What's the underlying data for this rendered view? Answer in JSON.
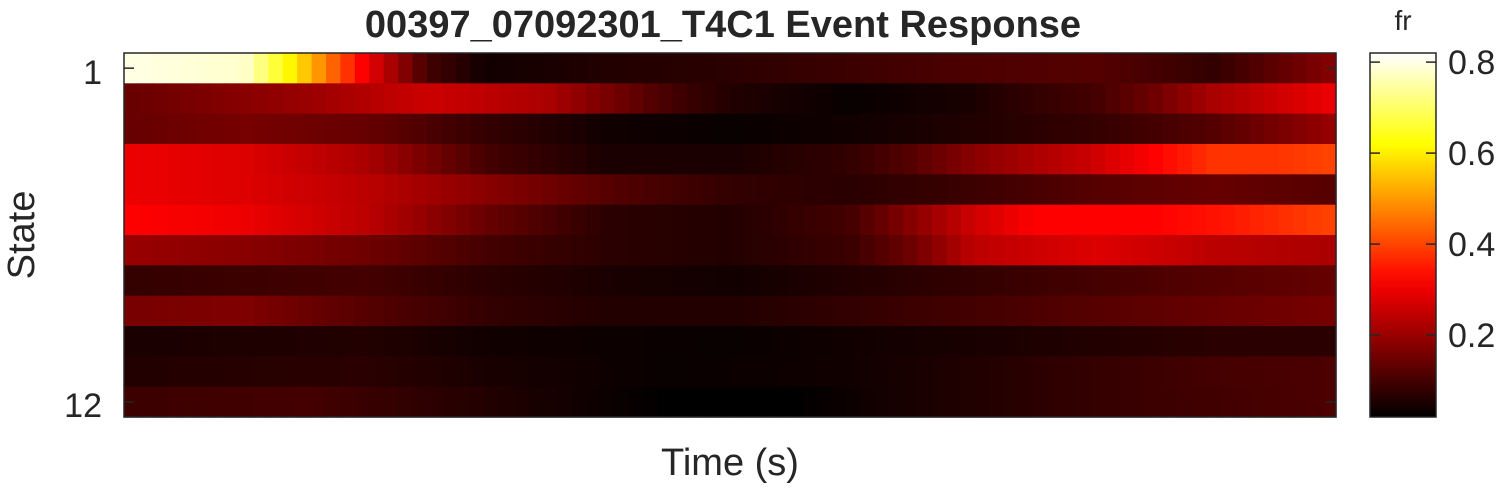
{
  "chart_data": {
    "type": "heatmap",
    "title": "00397_07092301_T4C1 Event Response",
    "xlabel": "Time (s)",
    "ylabel": "State",
    "y_tick_labels": [
      "1",
      "12"
    ],
    "rows": 12,
    "colorbar": {
      "label": "fr",
      "range": [
        0.02,
        0.82
      ],
      "ticks": [
        0.2,
        0.4,
        0.6,
        0.8
      ],
      "tick_labels": [
        "0.2",
        "0.4",
        "0.6",
        "0.8"
      ],
      "colormap": "hot"
    },
    "row_profiles": [
      [
        [
          0,
          0.8
        ],
        [
          0.1,
          0.78
        ],
        [
          0.15,
          0.55
        ],
        [
          0.2,
          0.3
        ],
        [
          0.25,
          0.1
        ],
        [
          0.3,
          0.04
        ],
        [
          0.4,
          0.06
        ],
        [
          0.5,
          0.07
        ],
        [
          0.6,
          0.09
        ],
        [
          0.7,
          0.11
        ],
        [
          0.8,
          0.12
        ],
        [
          0.85,
          0.1
        ],
        [
          0.9,
          0.08
        ],
        [
          1.0,
          0.18
        ]
      ],
      [
        [
          0,
          0.14
        ],
        [
          0.15,
          0.2
        ],
        [
          0.25,
          0.26
        ],
        [
          0.35,
          0.22
        ],
        [
          0.45,
          0.1
        ],
        [
          0.5,
          0.06
        ],
        [
          0.6,
          0.03
        ],
        [
          0.7,
          0.05
        ],
        [
          0.75,
          0.08
        ],
        [
          0.8,
          0.1
        ],
        [
          0.85,
          0.15
        ],
        [
          0.9,
          0.22
        ],
        [
          0.95,
          0.26
        ],
        [
          1.0,
          0.3
        ]
      ],
      [
        [
          0,
          0.14
        ],
        [
          0.1,
          0.16
        ],
        [
          0.2,
          0.14
        ],
        [
          0.3,
          0.08
        ],
        [
          0.4,
          0.04
        ],
        [
          0.5,
          0.03
        ],
        [
          0.6,
          0.04
        ],
        [
          0.7,
          0.06
        ],
        [
          0.8,
          0.08
        ],
        [
          0.9,
          0.12
        ],
        [
          1.0,
          0.2
        ]
      ],
      [
        [
          0,
          0.3
        ],
        [
          0.1,
          0.28
        ],
        [
          0.2,
          0.22
        ],
        [
          0.3,
          0.1
        ],
        [
          0.4,
          0.05
        ],
        [
          0.5,
          0.05
        ],
        [
          0.6,
          0.08
        ],
        [
          0.65,
          0.12
        ],
        [
          0.7,
          0.18
        ],
        [
          0.8,
          0.26
        ],
        [
          0.85,
          0.32
        ],
        [
          0.9,
          0.38
        ],
        [
          0.95,
          0.38
        ],
        [
          1.0,
          0.4
        ]
      ],
      [
        [
          0,
          0.3
        ],
        [
          0.1,
          0.28
        ],
        [
          0.2,
          0.24
        ],
        [
          0.3,
          0.18
        ],
        [
          0.4,
          0.12
        ],
        [
          0.5,
          0.08
        ],
        [
          0.6,
          0.07
        ],
        [
          0.7,
          0.09
        ],
        [
          0.8,
          0.12
        ],
        [
          0.9,
          0.14
        ],
        [
          1.0,
          0.12
        ]
      ],
      [
        [
          0,
          0.32
        ],
        [
          0.1,
          0.3
        ],
        [
          0.2,
          0.24
        ],
        [
          0.3,
          0.14
        ],
        [
          0.4,
          0.07
        ],
        [
          0.5,
          0.06
        ],
        [
          0.6,
          0.1
        ],
        [
          0.65,
          0.18
        ],
        [
          0.7,
          0.26
        ],
        [
          0.75,
          0.32
        ],
        [
          0.85,
          0.32
        ],
        [
          0.9,
          0.34
        ],
        [
          1.0,
          0.4
        ]
      ],
      [
        [
          0,
          0.2
        ],
        [
          0.1,
          0.18
        ],
        [
          0.2,
          0.15
        ],
        [
          0.3,
          0.1
        ],
        [
          0.4,
          0.07
        ],
        [
          0.5,
          0.06
        ],
        [
          0.6,
          0.09
        ],
        [
          0.65,
          0.15
        ],
        [
          0.7,
          0.24
        ],
        [
          0.8,
          0.28
        ],
        [
          0.9,
          0.24
        ],
        [
          1.0,
          0.22
        ]
      ],
      [
        [
          0,
          0.08
        ],
        [
          0.2,
          0.1
        ],
        [
          0.3,
          0.07
        ],
        [
          0.4,
          0.05
        ],
        [
          0.5,
          0.04
        ],
        [
          0.6,
          0.06
        ],
        [
          0.7,
          0.08
        ],
        [
          0.8,
          0.1
        ],
        [
          0.9,
          0.12
        ],
        [
          1.0,
          0.14
        ]
      ],
      [
        [
          0,
          0.16
        ],
        [
          0.1,
          0.17
        ],
        [
          0.2,
          0.12
        ],
        [
          0.3,
          0.08
        ],
        [
          0.4,
          0.06
        ],
        [
          0.5,
          0.06
        ],
        [
          0.6,
          0.08
        ],
        [
          0.7,
          0.1
        ],
        [
          0.8,
          0.12
        ],
        [
          0.9,
          0.14
        ],
        [
          1.0,
          0.16
        ]
      ],
      [
        [
          0,
          0.05
        ],
        [
          0.2,
          0.06
        ],
        [
          0.3,
          0.04
        ],
        [
          0.5,
          0.03
        ],
        [
          0.6,
          0.04
        ],
        [
          0.7,
          0.05
        ],
        [
          0.8,
          0.06
        ],
        [
          0.9,
          0.07
        ],
        [
          1.0,
          0.07
        ]
      ],
      [
        [
          0,
          0.06
        ],
        [
          0.2,
          0.07
        ],
        [
          0.3,
          0.05
        ],
        [
          0.45,
          0.03
        ],
        [
          0.6,
          0.04
        ],
        [
          0.7,
          0.06
        ],
        [
          0.8,
          0.08
        ],
        [
          0.9,
          0.1
        ],
        [
          1.0,
          0.11
        ]
      ],
      [
        [
          0,
          0.09
        ],
        [
          0.15,
          0.1
        ],
        [
          0.3,
          0.06
        ],
        [
          0.45,
          0.02
        ],
        [
          0.55,
          0.02
        ],
        [
          0.65,
          0.05
        ],
        [
          0.75,
          0.07
        ],
        [
          0.85,
          0.09
        ],
        [
          1.0,
          0.11
        ]
      ]
    ]
  }
}
